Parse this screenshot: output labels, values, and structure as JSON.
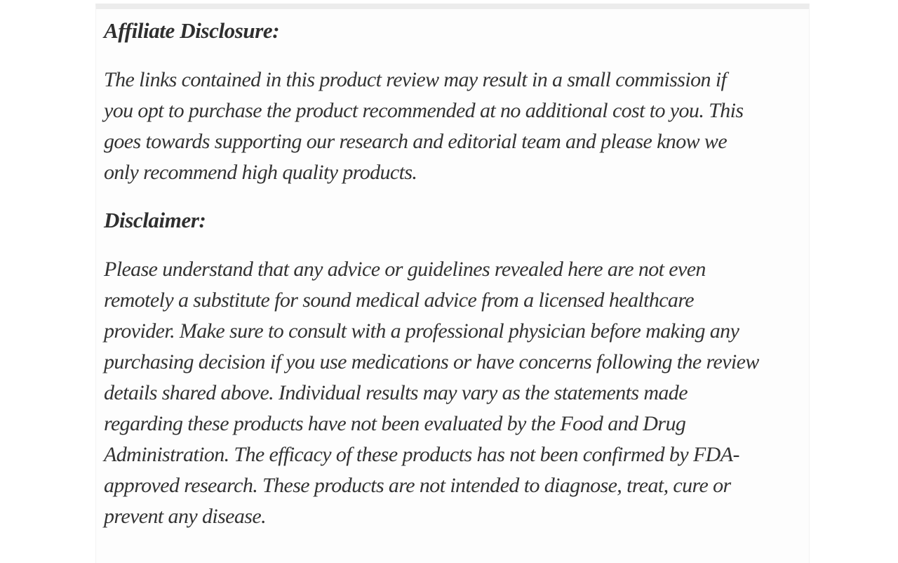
{
  "page": {
    "background_color": "#ffffff",
    "card_background_color": "#fdfdfd",
    "card_edge_color": "#ececec",
    "text_color": "#333333"
  },
  "article": {
    "affiliate": {
      "heading": "Affiliate Disclosure:",
      "lines": [
        "The links contained in this product review may result in a small commission if",
        "you opt to purchase the product recommended at no additional cost to you. This",
        "goes towards supporting our research and editorial team and please know we",
        "only recommend high quality products."
      ],
      "text": "The links contained in this product review may result in a small commission if you opt to purchase the product recommended at no additional cost to you. This goes towards supporting our research and editorial team and please know we only recommend high quality products."
    },
    "disclaimer": {
      "heading": "Disclaimer:",
      "lines": [
        "Please understand that any advice or guidelines revealed here are not even",
        "remotely a substitute for sound medical advice from a licensed healthcare",
        "provider. Make sure to consult with a professional physician before making any",
        "purchasing decision if you use medications or have concerns following the review",
        "details shared above. Individual results may vary as the statements made",
        "regarding these products have not been evaluated by the Food and Drug",
        "Administration. The efficacy of these products has not been confirmed by FDA-",
        "approved research. These products are not intended to diagnose, treat, cure or",
        "prevent any disease."
      ],
      "text": "Please understand that any advice or guidelines revealed here are not even remotely a substitute for sound medical advice from a licensed healthcare provider. Make sure to consult with a professional physician before making any purchasing decision if you use medications or have concerns following the review details shared above. Individual results may vary as the statements made regarding these products have not been evaluated by the Food and Drug Administration. The efficacy of these products has not been confirmed by FDA-approved research. These products are not intended to diagnose, treat, cure or prevent any disease."
    }
  }
}
